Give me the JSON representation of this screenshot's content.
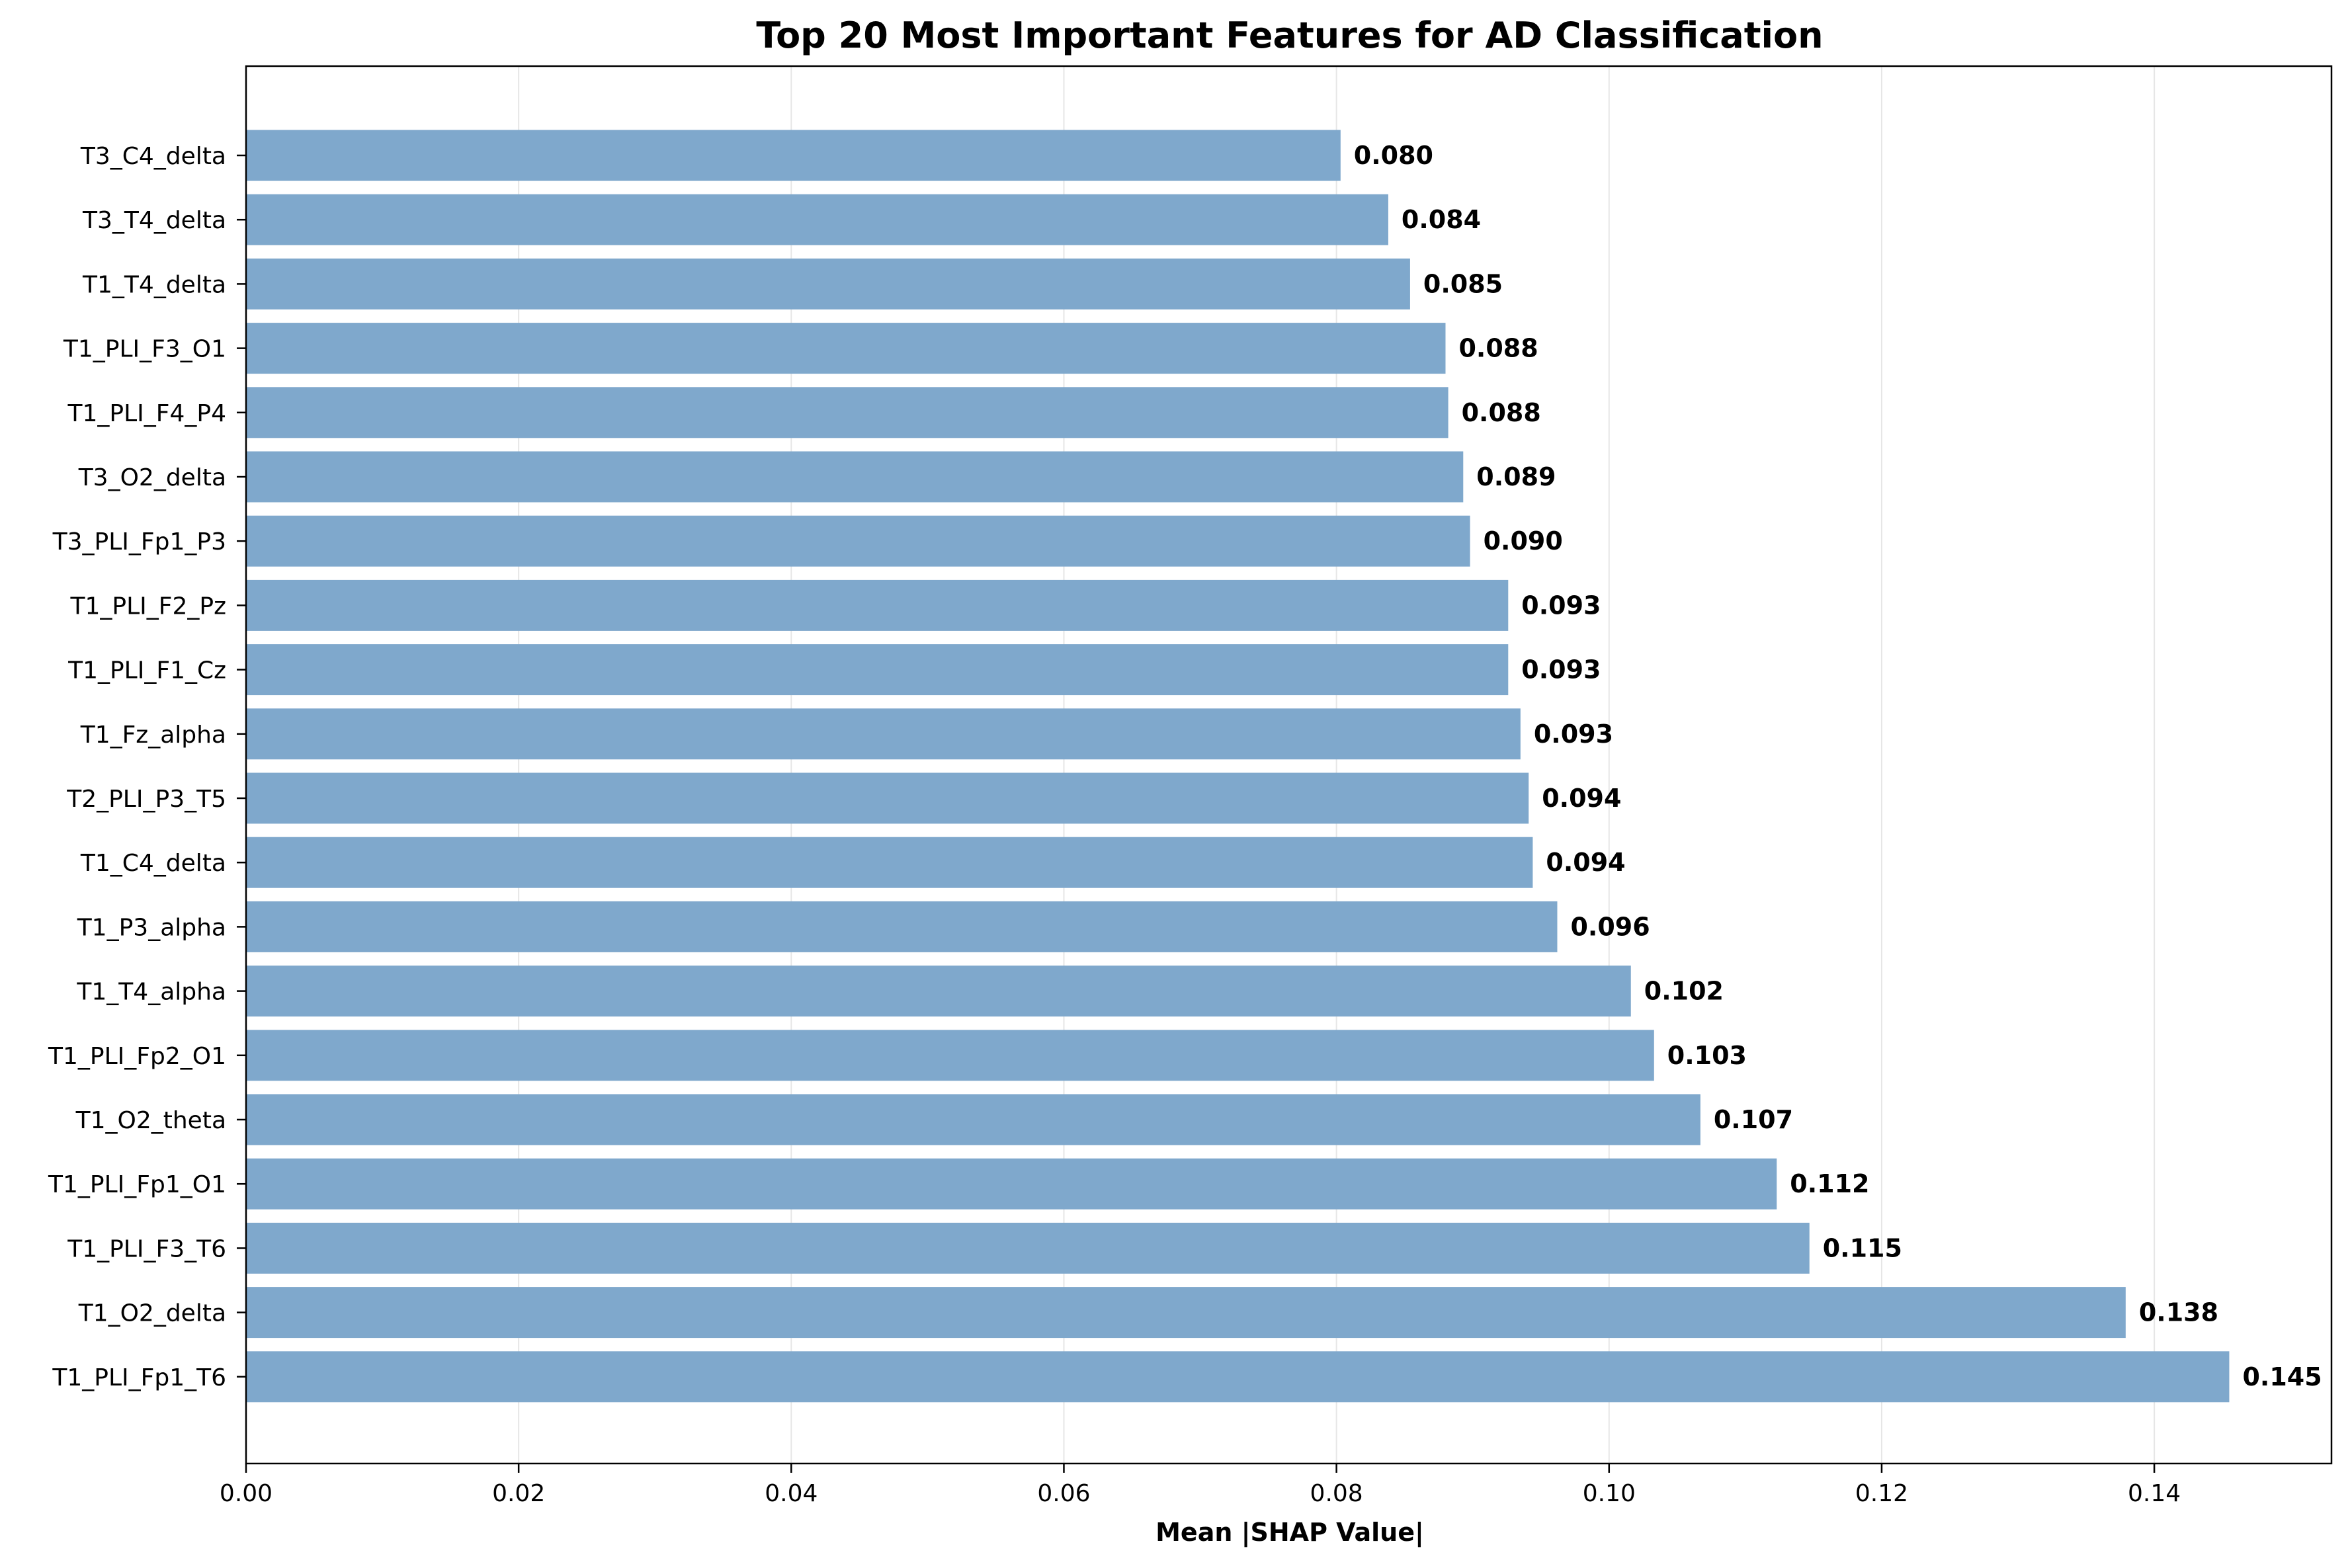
{
  "chart_data": {
    "type": "bar",
    "orientation": "horizontal",
    "title": "Top 20 Most Important Features for AD Classification",
    "xlabel": "Mean |SHAP Value|",
    "ylabel": "",
    "xlim": [
      0,
      0.153
    ],
    "x_ticks": [
      0.0,
      0.02,
      0.04,
      0.06,
      0.08,
      0.1,
      0.12,
      0.14
    ],
    "x_tick_labels": [
      "0.00",
      "0.02",
      "0.04",
      "0.06",
      "0.08",
      "0.10",
      "0.12",
      "0.14"
    ],
    "grid": "x",
    "bar_color": "#7fa8cc",
    "categories": [
      "T3_C4_delta",
      "T3_T4_delta",
      "T1_T4_delta",
      "T1_PLI_F3_O1",
      "T1_PLI_F4_P4",
      "T3_O2_delta",
      "T3_PLI_Fp1_P3",
      "T1_PLI_F2_Pz",
      "T1_PLI_F1_Cz",
      "T1_Fz_alpha",
      "T2_PLI_P3_T5",
      "T1_C4_delta",
      "T1_P3_alpha",
      "T1_T4_alpha",
      "T1_PLI_Fp2_O1",
      "T1_O2_theta",
      "T1_PLI_Fp1_O1",
      "T1_PLI_F3_T6",
      "T1_O2_delta",
      "T1_PLI_Fp1_T6"
    ],
    "values": [
      0.0803,
      0.0838,
      0.0854,
      0.088,
      0.0882,
      0.0893,
      0.0898,
      0.0926,
      0.0926,
      0.0935,
      0.0941,
      0.0944,
      0.0962,
      0.1016,
      0.1033,
      0.1067,
      0.1123,
      0.1147,
      0.1379,
      0.1455
    ],
    "value_labels": [
      "0.080",
      "0.084",
      "0.085",
      "0.088",
      "0.088",
      "0.089",
      "0.090",
      "0.093",
      "0.093",
      "0.093",
      "0.094",
      "0.094",
      "0.096",
      "0.102",
      "0.103",
      "0.107",
      "0.112",
      "0.115",
      "0.138",
      "0.145"
    ]
  }
}
